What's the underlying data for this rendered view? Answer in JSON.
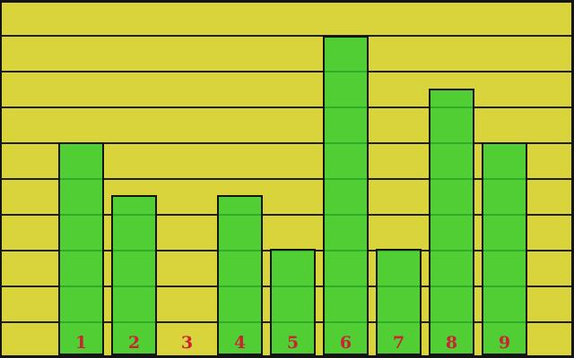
{
  "chart_data": {
    "type": "bar",
    "categories": [
      "1",
      "2",
      "3",
      "4",
      "5",
      "6",
      "7",
      "8",
      "9"
    ],
    "values": [
      6,
      4.5,
      0,
      4.5,
      3,
      9,
      3,
      7.5,
      6
    ],
    "title": "",
    "xlabel": "",
    "ylabel": "",
    "ylim": [
      0,
      10
    ],
    "gridline_spacing": 1,
    "grid": "horizontal",
    "legend": "none",
    "colors": {
      "background": "#d9d43c",
      "bar_fill": "rgba(50,205,50,0.82)",
      "bar_border": "#141414",
      "gridline": "#20200e",
      "frame": "#141414",
      "category_label": "#cc2233"
    }
  }
}
